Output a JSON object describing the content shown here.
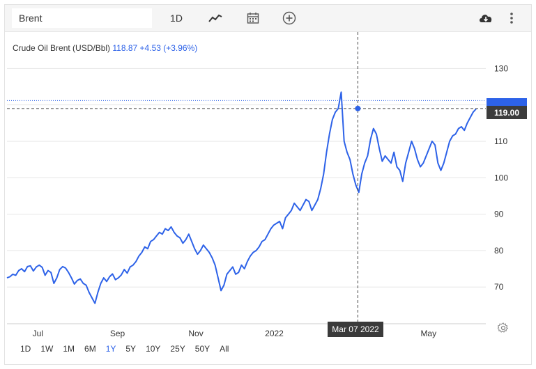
{
  "toolbar": {
    "search_value": "Brent",
    "frequency_label": "1D",
    "icons": [
      "line-chart-icon",
      "calendar-icon",
      "add-icon",
      "download-cloud-icon",
      "more-vertical-icon"
    ]
  },
  "legend": {
    "name": "Crude Oil Brent (USD/Bbl)",
    "price": "118.87",
    "change": "+4.53 (+3.96%)"
  },
  "crosshair": {
    "date_label": "Mar 07 2022",
    "price_label": "119.00"
  },
  "periods": [
    "1D",
    "1W",
    "1M",
    "6M",
    "1Y",
    "5Y",
    "10Y",
    "25Y",
    "50Y",
    "All"
  ],
  "active_period": "1Y",
  "colors": {
    "line": "#2d62e8",
    "active": "#2d62e8",
    "badge": "#3c3c3c"
  },
  "chart_data": {
    "type": "line",
    "title": "",
    "xlabel": "",
    "ylabel": "",
    "x_ticks": [
      "Jul",
      "Sep",
      "Nov",
      "2022",
      "Mar 07 2022",
      "May"
    ],
    "y_ticks": [
      70,
      80,
      90,
      100,
      110,
      130
    ],
    "ylim": [
      60,
      140
    ],
    "grid": true,
    "series": [
      {
        "values": [
          72.5,
          72.8,
          73.5,
          73.2,
          74.5,
          75.0,
          74.2,
          75.6,
          75.8,
          74.4,
          75.5,
          76.0,
          75.4,
          73.2,
          74.5,
          74.0,
          71.0,
          72.5,
          74.8,
          75.6,
          75.2,
          74.0,
          72.5,
          70.8,
          71.8,
          72.2,
          71.0,
          70.5,
          68.5,
          67.0,
          65.5,
          68.5,
          71.0,
          72.5,
          71.5,
          72.8,
          73.6,
          72.0,
          72.5,
          73.3,
          74.8,
          73.8,
          75.5,
          76.0,
          77.0,
          78.5,
          79.5,
          81.0,
          80.5,
          82.5,
          83.0,
          84.0,
          85.0,
          84.5,
          86.0,
          85.5,
          86.5,
          85.0,
          84.0,
          83.5,
          82.0,
          83.0,
          84.5,
          82.5,
          80.5,
          79.0,
          80.0,
          81.5,
          80.5,
          79.5,
          78.0,
          76.0,
          72.5,
          69.0,
          70.5,
          73.5,
          74.5,
          75.5,
          73.5,
          74.0,
          76.0,
          75.0,
          77.0,
          78.5,
          79.5,
          80.0,
          81.0,
          82.5,
          83.0,
          84.5,
          86.0,
          87.0,
          87.5,
          88.0,
          86.0,
          89.0,
          90.0,
          91.0,
          93.0,
          92.0,
          91.0,
          92.5,
          94.0,
          93.5,
          91.0,
          92.5,
          94.0,
          97.0,
          101.0,
          107.0,
          112.0,
          116.0,
          118.0,
          119.0,
          123.5,
          110.0,
          107.0,
          105.0,
          101.0,
          98.0,
          96.0,
          101.0,
          104.0,
          106.0,
          110.5,
          113.5,
          112.0,
          108.0,
          104.5,
          106.0,
          105.0,
          104.0,
          107.0,
          103.0,
          102.0,
          99.0,
          104.0,
          107.0,
          110.0,
          108.0,
          105.0,
          103.0,
          104.0,
          106.0,
          108.0,
          110.0,
          109.0,
          104.0,
          102.0,
          104.0,
          107.0,
          110.0,
          111.5,
          112.0,
          113.5,
          114.0,
          113.0,
          115.0,
          116.5,
          118.0,
          118.87
        ],
        "start_date": "2021-06-07",
        "end_date": "2022-06-07"
      }
    ]
  }
}
